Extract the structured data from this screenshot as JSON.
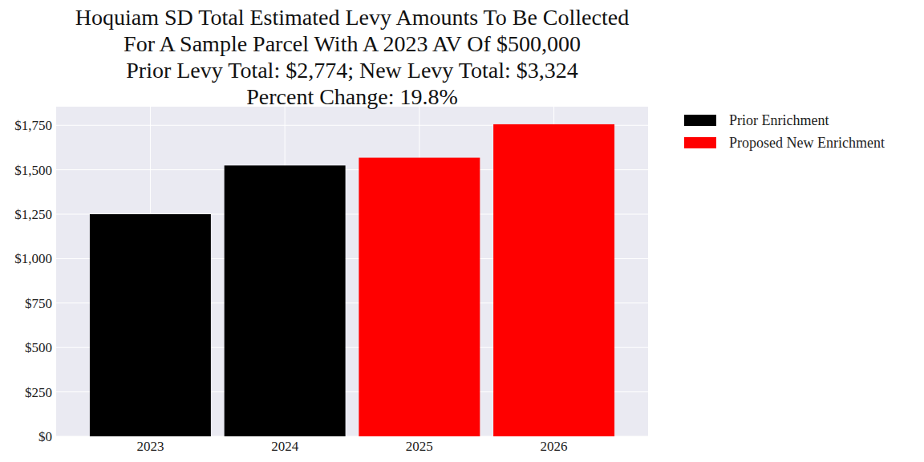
{
  "chart_data": {
    "type": "bar",
    "title": [
      "Hoquiam SD Total Estimated Levy Amounts To Be Collected",
      "For A Sample Parcel With A 2023 AV Of $500,000",
      "Prior Levy Total:  $2,774; New Levy Total: $3,324",
      "Percent Change: 19.8%"
    ],
    "categories": [
      "2023",
      "2024",
      "2025",
      "2026"
    ],
    "series": [
      {
        "name": "Prior Enrichment",
        "color": "#000000",
        "values": [
          1250,
          1524,
          null,
          null
        ]
      },
      {
        "name": "Proposed New Enrichment",
        "color": "#ff0000",
        "values": [
          null,
          null,
          1568,
          1756
        ]
      }
    ],
    "ylim": [
      0,
      1855
    ],
    "yticks": [
      {
        "value": 0,
        "label": "$0"
      },
      {
        "value": 250,
        "label": "$250"
      },
      {
        "value": 500,
        "label": "$500"
      },
      {
        "value": 750,
        "label": "$750"
      },
      {
        "value": 1000,
        "label": "$1,000"
      },
      {
        "value": 1250,
        "label": "$1,250"
      },
      {
        "value": 1500,
        "label": "$1,500"
      },
      {
        "value": 1750,
        "label": "$1,750"
      }
    ],
    "grid": true,
    "legend": "outside upper right"
  }
}
